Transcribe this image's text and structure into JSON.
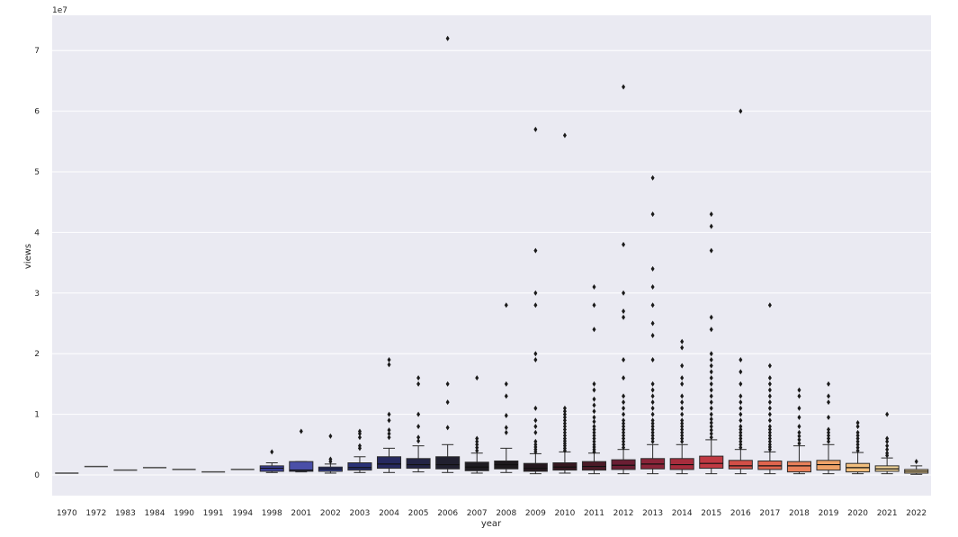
{
  "chart_data": {
    "type": "box",
    "xlabel": "year",
    "ylabel": "views",
    "y_multiplier_label": "1e7",
    "ylim": [
      -0.35,
      7.6
    ],
    "yticks": [
      0,
      1,
      2,
      3,
      4,
      5,
      6,
      7
    ],
    "grid": true,
    "legend": "none",
    "colors": {
      "plot_background": "#eaeaf2",
      "grid": "#ffffff",
      "palette": [
        "#3b3f9a",
        "#4a4fa8",
        "#2f3a8a",
        "#2a3277",
        "#26295f",
        "#232445",
        "#21202f",
        "#1e1c22",
        "#1d1a1d",
        "#24171e",
        "#361821",
        "#4c1b27",
        "#6a1e33",
        "#8a2439",
        "#a72d3d",
        "#c03a43",
        "#d34f47",
        "#e0654e",
        "#e8805a",
        "#eea268",
        "#f2bf7e",
        "#f5d79b"
      ]
    },
    "boxes": [
      {
        "year": "1970",
        "min": 0.03,
        "q1": 0.03,
        "median": 0.03,
        "q3": 0.03,
        "max": 0.03,
        "outliers": []
      },
      {
        "year": "1972",
        "min": 0.14,
        "q1": 0.14,
        "median": 0.14,
        "q3": 0.14,
        "max": 0.14,
        "outliers": []
      },
      {
        "year": "1983",
        "min": 0.08,
        "q1": 0.08,
        "median": 0.08,
        "q3": 0.08,
        "max": 0.08,
        "outliers": []
      },
      {
        "year": "1984",
        "min": 0.12,
        "q1": 0.12,
        "median": 0.12,
        "q3": 0.12,
        "max": 0.12,
        "outliers": []
      },
      {
        "year": "1990",
        "min": 0.09,
        "q1": 0.09,
        "median": 0.09,
        "q3": 0.09,
        "max": 0.09,
        "outliers": []
      },
      {
        "year": "1991",
        "min": 0.05,
        "q1": 0.05,
        "median": 0.05,
        "q3": 0.05,
        "max": 0.05,
        "outliers": []
      },
      {
        "year": "1994",
        "min": 0.09,
        "q1": 0.09,
        "median": 0.09,
        "q3": 0.09,
        "max": 0.09,
        "outliers": []
      },
      {
        "year": "1998",
        "min": 0.04,
        "q1": 0.06,
        "median": 0.11,
        "q3": 0.15,
        "max": 0.2,
        "outliers": [
          0.38
        ]
      },
      {
        "year": "2001",
        "min": 0.05,
        "q1": 0.06,
        "median": 0.08,
        "q3": 0.22,
        "max": 0.22,
        "outliers": [
          0.72
        ]
      },
      {
        "year": "2002",
        "min": 0.03,
        "q1": 0.06,
        "median": 0.1,
        "q3": 0.13,
        "max": 0.18,
        "outliers": [
          0.22,
          0.26,
          0.64
        ]
      },
      {
        "year": "2003",
        "min": 0.04,
        "q1": 0.08,
        "median": 0.12,
        "q3": 0.2,
        "max": 0.3,
        "outliers": [
          0.44,
          0.48,
          0.62,
          0.68,
          0.72
        ]
      },
      {
        "year": "2004",
        "min": 0.04,
        "q1": 0.11,
        "median": 0.18,
        "q3": 0.3,
        "max": 0.44,
        "outliers": [
          0.62,
          0.68,
          0.74,
          0.9,
          1.0,
          1.82,
          1.9
        ]
      },
      {
        "year": "2005",
        "min": 0.05,
        "q1": 0.11,
        "median": 0.17,
        "q3": 0.27,
        "max": 0.48,
        "outliers": [
          0.56,
          0.62,
          0.8,
          1.0,
          1.5,
          1.6
        ]
      },
      {
        "year": "2006",
        "min": 0.04,
        "q1": 0.1,
        "median": 0.17,
        "q3": 0.3,
        "max": 0.5,
        "outliers": [
          0.78,
          1.2,
          1.5,
          7.2
        ]
      },
      {
        "year": "2007",
        "min": 0.03,
        "q1": 0.07,
        "median": 0.13,
        "q3": 0.21,
        "max": 0.36,
        "outliers": [
          0.4,
          0.45,
          0.5,
          0.55,
          0.6,
          1.6
        ]
      },
      {
        "year": "2008",
        "min": 0.04,
        "q1": 0.1,
        "median": 0.17,
        "q3": 0.23,
        "max": 0.44,
        "outliers": [
          0.7,
          0.78,
          0.98,
          1.3,
          1.5,
          2.8
        ]
      },
      {
        "year": "2009",
        "min": 0.02,
        "q1": 0.06,
        "median": 0.11,
        "q3": 0.19,
        "max": 0.35,
        "outliers": [
          0.38,
          0.42,
          0.46,
          0.5,
          0.55,
          0.7,
          0.8,
          0.9,
          1.1,
          1.9,
          2.0,
          2.8,
          3.0,
          3.7,
          5.7
        ]
      },
      {
        "year": "2010",
        "min": 0.03,
        "q1": 0.08,
        "median": 0.13,
        "q3": 0.2,
        "max": 0.38,
        "outliers": [
          0.4,
          0.44,
          0.48,
          0.52,
          0.56,
          0.6,
          0.65,
          0.7,
          0.75,
          0.8,
          0.85,
          0.9,
          0.95,
          1.0,
          1.05,
          1.1,
          5.6
        ]
      },
      {
        "year": "2011",
        "min": 0.02,
        "q1": 0.08,
        "median": 0.14,
        "q3": 0.22,
        "max": 0.36,
        "outliers": [
          0.38,
          0.42,
          0.46,
          0.5,
          0.55,
          0.6,
          0.65,
          0.7,
          0.75,
          0.8,
          0.88,
          0.95,
          1.05,
          1.15,
          1.25,
          1.4,
          1.5,
          2.4,
          2.8,
          3.1
        ]
      },
      {
        "year": "2012",
        "min": 0.02,
        "q1": 0.09,
        "median": 0.16,
        "q3": 0.25,
        "max": 0.42,
        "outliers": [
          0.45,
          0.5,
          0.55,
          0.6,
          0.65,
          0.7,
          0.75,
          0.8,
          0.85,
          0.9,
          1.0,
          1.1,
          1.2,
          1.3,
          1.6,
          1.9,
          2.6,
          2.7,
          3.0,
          3.8,
          6.4
        ]
      },
      {
        "year": "2013",
        "min": 0.02,
        "q1": 0.1,
        "median": 0.18,
        "q3": 0.27,
        "max": 0.5,
        "outliers": [
          0.55,
          0.6,
          0.65,
          0.7,
          0.75,
          0.8,
          0.85,
          0.9,
          1.0,
          1.1,
          1.2,
          1.3,
          1.4,
          1.5,
          1.9,
          2.3,
          2.5,
          2.8,
          3.1,
          3.4,
          4.3,
          4.9
        ]
      },
      {
        "year": "2014",
        "min": 0.02,
        "q1": 0.09,
        "median": 0.17,
        "q3": 0.27,
        "max": 0.5,
        "outliers": [
          0.55,
          0.6,
          0.65,
          0.7,
          0.75,
          0.8,
          0.85,
          0.9,
          1.0,
          1.1,
          1.2,
          1.3,
          1.5,
          1.6,
          1.8,
          2.1,
          2.2
        ]
      },
      {
        "year": "2015",
        "min": 0.02,
        "q1": 0.11,
        "median": 0.19,
        "q3": 0.31,
        "max": 0.58,
        "outliers": [
          0.62,
          0.68,
          0.74,
          0.8,
          0.86,
          0.92,
          1.0,
          1.1,
          1.2,
          1.3,
          1.4,
          1.5,
          1.6,
          1.7,
          1.8,
          1.9,
          2.0,
          2.4,
          2.6,
          3.7,
          4.1,
          4.3
        ]
      },
      {
        "year": "2016",
        "min": 0.02,
        "q1": 0.1,
        "median": 0.15,
        "q3": 0.24,
        "max": 0.42,
        "outliers": [
          0.45,
          0.5,
          0.55,
          0.6,
          0.65,
          0.7,
          0.75,
          0.8,
          0.9,
          1.0,
          1.1,
          1.2,
          1.3,
          1.5,
          1.7,
          1.9,
          6.0
        ]
      },
      {
        "year": "2017",
        "min": 0.02,
        "q1": 0.09,
        "median": 0.15,
        "q3": 0.23,
        "max": 0.38,
        "outliers": [
          0.42,
          0.46,
          0.5,
          0.55,
          0.6,
          0.65,
          0.7,
          0.75,
          0.8,
          0.9,
          1.0,
          1.1,
          1.2,
          1.3,
          1.4,
          1.5,
          1.6,
          1.8,
          2.8
        ]
      },
      {
        "year": "2018",
        "min": 0.02,
        "q1": 0.05,
        "median": 0.15,
        "q3": 0.22,
        "max": 0.48,
        "outliers": [
          0.52,
          0.58,
          0.64,
          0.7,
          0.8,
          0.95,
          1.1,
          1.3,
          1.4
        ]
      },
      {
        "year": "2019",
        "min": 0.02,
        "q1": 0.08,
        "median": 0.17,
        "q3": 0.24,
        "max": 0.5,
        "outliers": [
          0.55,
          0.6,
          0.65,
          0.7,
          0.75,
          0.95,
          1.2,
          1.3,
          1.5
        ]
      },
      {
        "year": "2020",
        "min": 0.02,
        "q1": 0.05,
        "median": 0.12,
        "q3": 0.19,
        "max": 0.37,
        "outliers": [
          0.4,
          0.45,
          0.5,
          0.55,
          0.6,
          0.65,
          0.7,
          0.8,
          0.86
        ]
      },
      {
        "year": "2021",
        "min": 0.02,
        "q1": 0.06,
        "median": 0.1,
        "q3": 0.15,
        "max": 0.28,
        "outliers": [
          0.32,
          0.36,
          0.42,
          0.48,
          0.55,
          0.6,
          1.0
        ]
      },
      {
        "year": "2022",
        "min": 0.01,
        "q1": 0.03,
        "median": 0.06,
        "q3": 0.09,
        "max": 0.15,
        "outliers": [
          0.22
        ]
      }
    ]
  }
}
